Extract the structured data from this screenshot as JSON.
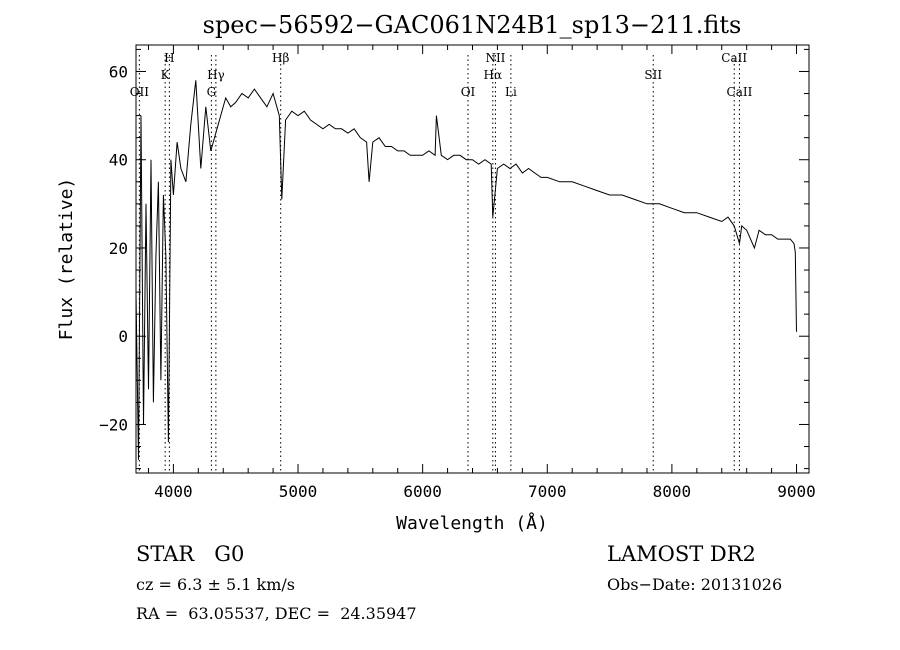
{
  "chart_data": {
    "type": "line",
    "title": "spec−56592−GAC061N24B1_sp13−211.fits",
    "xlabel": "Wavelength (Å)",
    "ylabel": "Flux (relative)",
    "xlim": [
      3700,
      9100
    ],
    "ylim": [
      -31,
      66
    ],
    "xticks": [
      4000,
      5000,
      6000,
      7000,
      8000,
      9000
    ],
    "yticks": [
      -20,
      0,
      20,
      40,
      60
    ],
    "ytick_labels": [
      "−20",
      "0",
      "20",
      "40",
      "60"
    ],
    "series": [
      {
        "x": [
          3700,
          3720,
          3740,
          3760,
          3780,
          3800,
          3820,
          3840,
          3860,
          3880,
          3900,
          3920,
          3940,
          3960,
          3980,
          4000,
          4030,
          4060,
          4100,
          4140,
          4180,
          4220,
          4260,
          4300,
          4340,
          4380,
          4420,
          4460,
          4500,
          4550,
          4600,
          4650,
          4700,
          4750,
          4800,
          4850,
          4870,
          4900,
          4950,
          5000,
          5050,
          5100,
          5150,
          5200,
          5250,
          5300,
          5350,
          5400,
          5450,
          5500,
          5550,
          5570,
          5600,
          5650,
          5700,
          5750,
          5800,
          5850,
          5900,
          5950,
          6000,
          6050,
          6100,
          6110,
          6150,
          6200,
          6250,
          6300,
          6350,
          6400,
          6450,
          6500,
          6550,
          6563,
          6600,
          6650,
          6700,
          6750,
          6800,
          6850,
          6900,
          6950,
          7000,
          7100,
          7200,
          7300,
          7400,
          7500,
          7600,
          7700,
          7800,
          7900,
          8000,
          8100,
          8200,
          8300,
          8400,
          8450,
          8500,
          8542,
          8560,
          8600,
          8662,
          8700,
          8750,
          8800,
          8850,
          8900,
          8950,
          8980,
          8990,
          9000
        ],
        "y": [
          10,
          -28,
          50,
          -20,
          30,
          -12,
          40,
          -15,
          18,
          35,
          -10,
          32,
          18,
          -24,
          40,
          32,
          44,
          38,
          35,
          48,
          58,
          38,
          52,
          42,
          46,
          50,
          54,
          52,
          53,
          55,
          54,
          56,
          54,
          52,
          55,
          50,
          31,
          49,
          51,
          50,
          51,
          49,
          48,
          47,
          48,
          47,
          47,
          46,
          47,
          45,
          44,
          35,
          44,
          45,
          43,
          43,
          42,
          42,
          41,
          41,
          41,
          42,
          41,
          50,
          41,
          40,
          41,
          41,
          40,
          40,
          39,
          40,
          39,
          27,
          38,
          39,
          38,
          39,
          37,
          38,
          37,
          36,
          36,
          35,
          35,
          34,
          33,
          32,
          32,
          31,
          30,
          30,
          29,
          28,
          28,
          27,
          26,
          27,
          25,
          21,
          25,
          24,
          20,
          24,
          23,
          23,
          22,
          22,
          22,
          21,
          19,
          1
        ]
      }
    ],
    "spectral_lines": [
      {
        "label": "OII",
        "x": 3727,
        "row": 3
      },
      {
        "label": "H",
        "x": 3968,
        "row": 1
      },
      {
        "label": "K",
        "x": 3934,
        "row": 2
      },
      {
        "label": "Hγ",
        "x": 4341,
        "row": 2
      },
      {
        "label": "G",
        "x": 4305,
        "row": 3
      },
      {
        "label": "Hβ",
        "x": 4861,
        "row": 1
      },
      {
        "label": "OI",
        "x": 6364,
        "row": 3
      },
      {
        "label": "NII",
        "x": 6584,
        "row": 1
      },
      {
        "label": "Hα",
        "x": 6563,
        "row": 2
      },
      {
        "label": "Li",
        "x": 6708,
        "row": 3
      },
      {
        "label": "SII",
        "x": 7850,
        "row": 2
      },
      {
        "label": "CaII",
        "x": 8500,
        "row": 1
      },
      {
        "label": "CaII",
        "x": 8542,
        "row": 3
      }
    ]
  },
  "info": {
    "class_label": "STAR",
    "subclass": "G0",
    "redshift": "cz = 6.3 ± 5.1 km/s",
    "coords": "RA =  63.05537, DEC =  24.35947",
    "survey": "LAMOST DR2",
    "obs_date": "Obs−Date: 20131026"
  }
}
